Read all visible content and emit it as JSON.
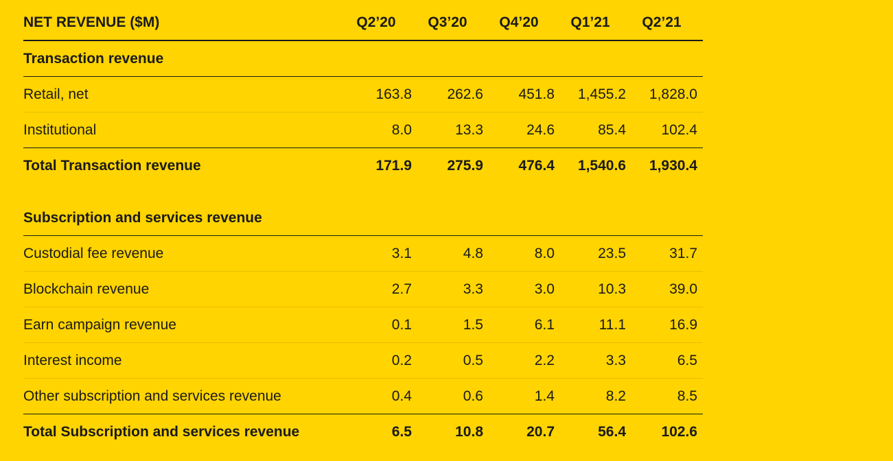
{
  "header": {
    "title": "NET REVENUE ($M)",
    "periods": [
      "Q2’20",
      "Q3’20",
      "Q4’20",
      "Q1’21",
      "Q2’21"
    ]
  },
  "transaction": {
    "heading": "Transaction revenue",
    "rows": [
      {
        "label": "Retail, net",
        "values": [
          "163.8",
          "262.6",
          "451.8",
          "1,455.2",
          "1,828.0"
        ]
      },
      {
        "label": "Institutional",
        "values": [
          "8.0",
          "13.3",
          "24.6",
          "85.4",
          "102.4"
        ]
      }
    ],
    "total": {
      "label": "Total Transaction revenue",
      "values": [
        "171.9",
        "275.9",
        "476.4",
        "1,540.6",
        "1,930.4"
      ]
    }
  },
  "subscription": {
    "heading": "Subscription and services revenue",
    "rows": [
      {
        "label": "Custodial fee revenue",
        "values": [
          "3.1",
          "4.8",
          "8.0",
          "23.5",
          "31.7"
        ]
      },
      {
        "label": "Blockchain revenue",
        "values": [
          "2.7",
          "3.3",
          "3.0",
          "10.3",
          "39.0"
        ]
      },
      {
        "label": "Earn campaign revenue",
        "values": [
          "0.1",
          "1.5",
          "6.1",
          "11.1",
          "16.9"
        ]
      },
      {
        "label": "Interest income",
        "values": [
          "0.2",
          "0.5",
          "2.2",
          "3.3",
          "6.5"
        ]
      },
      {
        "label": "Other subscription and services revenue",
        "values": [
          "0.4",
          "0.6",
          "1.4",
          "8.2",
          "8.5"
        ]
      }
    ],
    "total": {
      "label": "Total Subscription and services revenue",
      "values": [
        "6.5",
        "10.8",
        "20.7",
        "56.4",
        "102.6"
      ]
    }
  },
  "colors": {
    "background": "#FFD400",
    "text": "#1a1a1a",
    "row_divider": "#e6bf00"
  }
}
